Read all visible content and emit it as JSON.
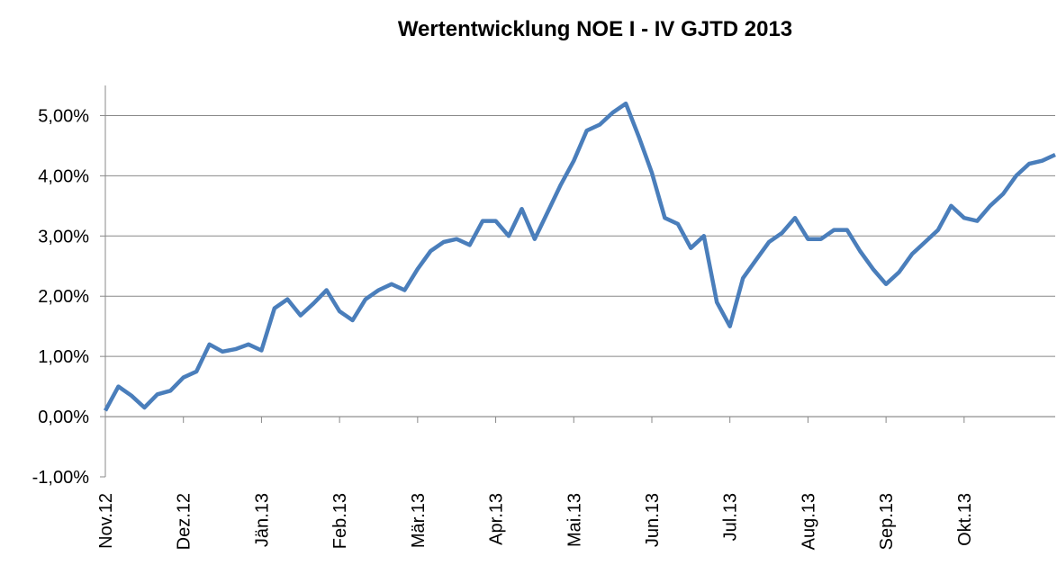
{
  "chart_data": {
    "type": "line",
    "title": "Wertentwicklung NOE I - IV GJTD 2013",
    "categories": [
      "Nov.12",
      null,
      null,
      null,
      null,
      null,
      "Dez.12",
      null,
      null,
      null,
      null,
      null,
      "Jän.13",
      null,
      null,
      null,
      null,
      null,
      "Feb.13",
      null,
      null,
      null,
      null,
      null,
      "Mär.13",
      null,
      null,
      null,
      null,
      null,
      "Apr.13",
      null,
      null,
      null,
      null,
      null,
      "Mai.13",
      null,
      null,
      null,
      null,
      null,
      "Jun.13",
      null,
      null,
      null,
      null,
      null,
      "Jul.13",
      null,
      null,
      null,
      null,
      null,
      "Aug.13",
      null,
      null,
      null,
      null,
      null,
      "Sep.13",
      null,
      null,
      null,
      null,
      null,
      "Okt.13",
      null,
      null,
      null,
      null,
      null,
      null,
      null
    ],
    "series": [
      {
        "color": "#4a7ebb",
        "values": [
          0.1,
          0.5,
          0.35,
          0.15,
          0.37,
          0.43,
          0.65,
          0.75,
          1.2,
          1.08,
          1.12,
          1.2,
          1.1,
          1.8,
          1.95,
          1.68,
          1.88,
          2.1,
          1.75,
          1.6,
          1.95,
          2.1,
          2.2,
          2.1,
          2.45,
          2.75,
          2.9,
          2.95,
          2.85,
          3.25,
          3.25,
          3.0,
          3.45,
          2.95,
          3.4,
          3.85,
          4.25,
          4.75,
          4.85,
          5.05,
          5.2,
          4.65,
          4.05,
          3.3,
          3.2,
          2.8,
          3.0,
          1.9,
          1.5,
          2.3,
          2.6,
          2.9,
          3.05,
          3.3,
          2.95,
          2.95,
          3.1,
          3.1,
          2.75,
          2.45,
          2.2,
          2.4,
          2.7,
          2.9,
          3.1,
          3.5,
          3.3,
          3.25,
          3.5,
          3.7,
          4.0,
          4.2,
          4.25,
          4.35
        ]
      }
    ],
    "ylim": [
      -1,
      5.5
    ],
    "yticks": [
      {
        "value": -1,
        "label": "-1,00%"
      },
      {
        "value": 0,
        "label": "0,00%"
      },
      {
        "value": 1,
        "label": "1,00%"
      },
      {
        "value": 2,
        "label": "2,00%"
      },
      {
        "value": 3,
        "label": "3,00%"
      },
      {
        "value": 4,
        "label": "4,00%"
      },
      {
        "value": 5,
        "label": "5,00%"
      }
    ],
    "grid": true
  }
}
